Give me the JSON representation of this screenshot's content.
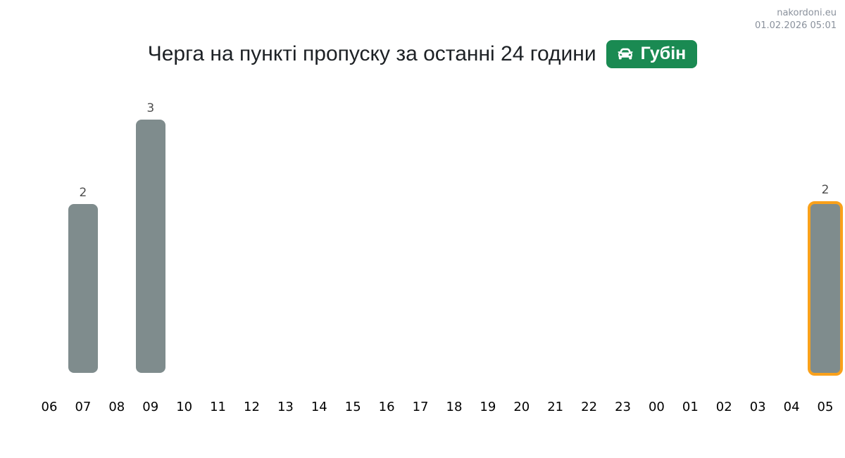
{
  "header": {
    "watermark": "nakordoni.eu",
    "timestamp": "01.02.2026 05:01"
  },
  "title": {
    "text": "Черга на пункті пропуску за останні 24 години",
    "badge": {
      "label": "Губін",
      "icon": "car-icon",
      "background": "#1a8a52",
      "text_color": "#ffffff"
    }
  },
  "chart_data": {
    "type": "bar",
    "title": "Черга на пункті пропуску за останні 24 години",
    "categories": [
      "06",
      "07",
      "08",
      "09",
      "10",
      "11",
      "12",
      "13",
      "14",
      "15",
      "16",
      "17",
      "18",
      "19",
      "20",
      "21",
      "22",
      "23",
      "00",
      "01",
      "02",
      "03",
      "04",
      "05"
    ],
    "values": [
      0,
      2,
      0,
      3,
      0,
      0,
      0,
      0,
      0,
      0,
      0,
      0,
      0,
      0,
      0,
      0,
      0,
      0,
      0,
      0,
      0,
      0,
      0,
      2
    ],
    "ylim": [
      0,
      3
    ],
    "xlabel": "",
    "ylabel": "",
    "grid": false,
    "legend": false,
    "bar_color": "#7f8c8d",
    "highlight_category": "05",
    "highlight_border_color": "#f9a11b",
    "value_labels": "shown above non-zero bars"
  }
}
